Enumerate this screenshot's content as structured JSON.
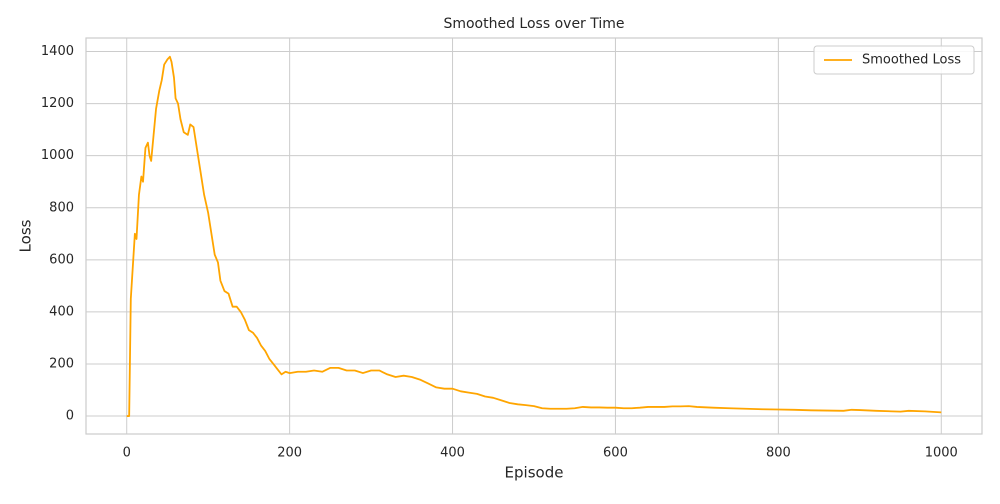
{
  "chart_data": {
    "type": "line",
    "title": "Smoothed Loss over Time",
    "x_label": "Episode",
    "y_label": "Loss",
    "x": [
      0,
      3,
      5,
      8,
      10,
      12,
      15,
      18,
      20,
      23,
      26,
      28,
      30,
      33,
      36,
      40,
      43,
      46,
      50,
      53,
      55,
      58,
      60,
      63,
      66,
      70,
      75,
      78,
      82,
      85,
      90,
      95,
      100,
      103,
      108,
      112,
      115,
      120,
      125,
      130,
      135,
      140,
      145,
      150,
      155,
      160,
      165,
      170,
      175,
      180,
      185,
      190,
      195,
      200,
      210,
      220,
      230,
      240,
      250,
      260,
      270,
      280,
      290,
      300,
      310,
      320,
      330,
      340,
      350,
      360,
      370,
      380,
      390,
      400,
      410,
      420,
      430,
      440,
      450,
      460,
      470,
      480,
      490,
      500,
      510,
      520,
      530,
      540,
      550,
      560,
      570,
      580,
      590,
      600,
      610,
      620,
      630,
      640,
      650,
      660,
      670,
      680,
      690,
      700,
      720,
      740,
      760,
      780,
      800,
      820,
      840,
      860,
      880,
      890,
      900,
      920,
      940,
      950,
      960,
      980,
      1000
    ],
    "series": [
      {
        "name": "Smoothed Loss",
        "color": "#ffa500",
        "values": [
          0,
          0,
          450,
          600,
          700,
          680,
          850,
          920,
          900,
          1030,
          1050,
          1000,
          980,
          1080,
          1180,
          1250,
          1290,
          1350,
          1370,
          1380,
          1360,
          1300,
          1220,
          1200,
          1140,
          1090,
          1080,
          1120,
          1110,
          1050,
          950,
          850,
          780,
          720,
          620,
          590,
          520,
          480,
          470,
          420,
          420,
          400,
          370,
          330,
          320,
          300,
          270,
          250,
          220,
          200,
          180,
          160,
          170,
          165,
          170,
          170,
          175,
          170,
          185,
          185,
          175,
          175,
          165,
          175,
          175,
          160,
          150,
          155,
          150,
          140,
          125,
          110,
          105,
          105,
          95,
          90,
          85,
          75,
          70,
          60,
          50,
          45,
          42,
          38,
          30,
          28,
          28,
          28,
          30,
          35,
          33,
          33,
          32,
          32,
          30,
          30,
          32,
          35,
          35,
          35,
          37,
          37,
          38,
          35,
          32,
          30,
          28,
          26,
          25,
          24,
          22,
          21,
          20,
          24,
          23,
          20,
          18,
          17,
          20,
          18,
          14
        ]
      }
    ],
    "xlim": [
      -50,
      1050
    ],
    "ylim": [
      -69,
      1452
    ],
    "xticks": [
      0,
      200,
      400,
      600,
      800,
      1000
    ],
    "yticks": [
      0,
      200,
      400,
      600,
      800,
      1000,
      1200,
      1400
    ],
    "grid": true,
    "legend": "upper right"
  }
}
